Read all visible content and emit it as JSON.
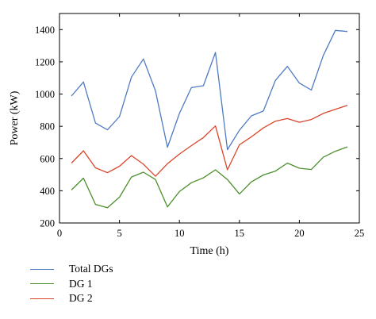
{
  "chart_data": {
    "type": "line",
    "xlabel": "Time (h)",
    "ylabel": "Power (kW)",
    "xlim": [
      0,
      25
    ],
    "ylim": [
      200,
      1500
    ],
    "xticks": [
      0,
      5,
      10,
      15,
      20,
      25
    ],
    "yticks": [
      200,
      400,
      600,
      800,
      1000,
      1200,
      1400
    ],
    "grid": false,
    "legend_placement": "below",
    "x": [
      1,
      2,
      3,
      4,
      5,
      6,
      7,
      8,
      9,
      10,
      11,
      12,
      13,
      14,
      15,
      16,
      17,
      18,
      19,
      20,
      21,
      22,
      23,
      24
    ],
    "series": [
      {
        "name": "Total DGs",
        "color": "#4f7bc2",
        "values": [
          988,
          1075,
          820,
          778,
          860,
          1105,
          1218,
          1020,
          670,
          880,
          1040,
          1052,
          1258,
          655,
          775,
          865,
          895,
          1085,
          1172,
          1068,
          1025,
          1240,
          1395,
          1388
        ]
      },
      {
        "name": "DG 1",
        "color": "#4c8f2c",
        "values": [
          405,
          478,
          315,
          295,
          360,
          485,
          515,
          470,
          300,
          395,
          450,
          480,
          530,
          470,
          380,
          455,
          498,
          522,
          572,
          540,
          532,
          608,
          645,
          672
        ]
      },
      {
        "name": "DG 2",
        "color": "#d9452b",
        "values": [
          572,
          648,
          542,
          512,
          552,
          618,
          565,
          490,
          568,
          628,
          680,
          730,
          802,
          530,
          685,
          735,
          790,
          832,
          848,
          825,
          842,
          880,
          905,
          930
        ]
      }
    ]
  }
}
